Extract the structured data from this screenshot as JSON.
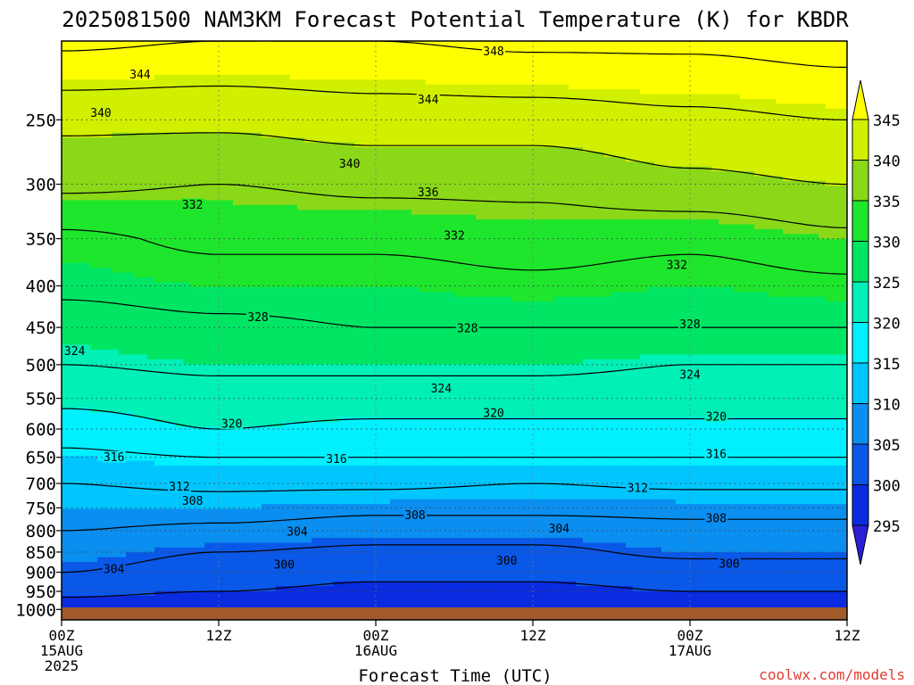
{
  "title": "2025081500 NAM3KM Forecast Potential Temperature (K) for KBDR",
  "xlabel": "Forecast Time (UTC)",
  "watermark": "coolwx.com/models",
  "chart_data": {
    "type": "contour",
    "title": "2025081500 NAM3KM Forecast Potential Temperature (K) for KBDR",
    "xlabel": "Forecast Time (UTC)",
    "ylabel": "",
    "y_scale": "log",
    "y_inverted": true,
    "x_range_hours": [
      0,
      60
    ],
    "y_range_hPa": [
      1030,
      200
    ],
    "x_ticks": [
      {
        "hour": 0,
        "lines": [
          "00Z",
          "15AUG",
          "2025"
        ]
      },
      {
        "hour": 12,
        "lines": [
          "12Z"
        ]
      },
      {
        "hour": 24,
        "lines": [
          "00Z",
          "16AUG"
        ]
      },
      {
        "hour": 36,
        "lines": [
          "12Z"
        ]
      },
      {
        "hour": 48,
        "lines": [
          "00Z",
          "17AUG"
        ]
      },
      {
        "hour": 60,
        "lines": [
          "12Z"
        ]
      }
    ],
    "y_ticks": [
      "250",
      "300",
      "350",
      "400",
      "450",
      "500",
      "550",
      "600",
      "650",
      "700",
      "750",
      "800",
      "850",
      "900",
      "950",
      "1000"
    ],
    "colorbar": {
      "labels": [
        "345",
        "340",
        "335",
        "330",
        "325",
        "320",
        "315",
        "310",
        "305",
        "300",
        "295"
      ],
      "levels": [
        295,
        300,
        305,
        310,
        315,
        320,
        325,
        330,
        335,
        340,
        345
      ],
      "colors": [
        "#2b1fd8",
        "#0a2ce0",
        "#0a58e8",
        "#0a8ef0",
        "#00c6ff",
        "#00f0ff",
        "#00f0b8",
        "#00e664",
        "#1ee62c",
        "#8ad818",
        "#d0f000",
        "#ffff00"
      ]
    },
    "contour_interval_K": 4,
    "profiles": [
      {
        "hour": 0,
        "levels_hPa": [
          1000,
          950,
          900,
          850,
          800,
          750,
          700,
          650,
          600,
          550,
          500,
          450,
          400,
          350,
          300,
          250,
          200
        ],
        "theta_K": [
          298,
          301,
          304,
          306,
          308,
          310,
          312,
          315,
          318,
          321,
          324,
          326,
          329,
          331,
          337,
          341,
          349
        ]
      },
      {
        "hour": 12,
        "levels_hPa": [
          1000,
          950,
          900,
          850,
          800,
          750,
          700,
          650,
          600,
          550,
          500,
          450,
          400,
          350,
          300,
          250,
          200
        ],
        "theta_K": [
          297,
          300,
          302,
          304,
          307,
          310,
          313,
          316,
          320,
          322,
          325,
          327,
          330,
          333,
          336,
          341,
          348
        ]
      },
      {
        "hour": 24,
        "levels_hPa": [
          1000,
          950,
          900,
          850,
          800,
          750,
          700,
          650,
          600,
          550,
          500,
          450,
          400,
          350,
          300,
          250,
          200
        ],
        "theta_K": [
          296,
          299,
          301,
          303,
          306,
          309,
          313,
          316,
          319,
          322,
          325,
          328,
          330,
          333,
          337,
          342,
          348
        ]
      },
      {
        "hour": 36,
        "levels_hPa": [
          1000,
          950,
          900,
          850,
          800,
          750,
          700,
          650,
          600,
          550,
          500,
          450,
          400,
          350,
          300,
          250,
          200
        ],
        "theta_K": [
          296,
          299,
          301,
          303,
          306,
          309,
          312,
          316,
          319,
          322,
          325,
          328,
          331,
          334,
          337,
          342,
          349
        ]
      },
      {
        "hour": 48,
        "levels_hPa": [
          1000,
          950,
          900,
          850,
          800,
          750,
          700,
          650,
          600,
          550,
          500,
          450,
          400,
          350,
          300,
          250,
          200
        ],
        "theta_K": [
          297,
          300,
          302,
          305,
          307,
          309,
          313,
          316,
          319,
          322,
          324,
          328,
          330,
          333,
          339,
          343,
          349
        ]
      },
      {
        "hour": 60,
        "levels_hPa": [
          1000,
          950,
          900,
          850,
          800,
          750,
          700,
          650,
          600,
          550,
          500,
          450,
          400,
          350,
          300,
          250,
          200
        ],
        "theta_K": [
          298,
          300,
          302,
          305,
          307,
          309,
          313,
          316,
          319,
          322,
          324,
          328,
          331,
          335,
          340,
          344,
          350
        ]
      }
    ],
    "contour_labels": [
      {
        "text": "348",
        "hour": 33,
        "hPa": 206
      },
      {
        "text": "344",
        "hour": 6,
        "hPa": 220
      },
      {
        "text": "344",
        "hour": 28,
        "hPa": 236
      },
      {
        "text": "340",
        "hour": 3,
        "hPa": 245
      },
      {
        "text": "340",
        "hour": 22,
        "hPa": 283
      },
      {
        "text": "336",
        "hour": 28,
        "hPa": 307
      },
      {
        "text": "332",
        "hour": 10,
        "hPa": 318
      },
      {
        "text": "332",
        "hour": 30,
        "hPa": 347
      },
      {
        "text": "332",
        "hour": 47,
        "hPa": 377
      },
      {
        "text": "328",
        "hour": 15,
        "hPa": 437
      },
      {
        "text": "328",
        "hour": 31,
        "hPa": 451
      },
      {
        "text": "328",
        "hour": 48,
        "hPa": 446
      },
      {
        "text": "324",
        "hour": 1,
        "hPa": 481
      },
      {
        "text": "324",
        "hour": 29,
        "hPa": 535
      },
      {
        "text": "324",
        "hour": 48,
        "hPa": 514
      },
      {
        "text": "320",
        "hour": 13,
        "hPa": 591
      },
      {
        "text": "320",
        "hour": 33,
        "hPa": 573
      },
      {
        "text": "320",
        "hour": 50,
        "hPa": 579
      },
      {
        "text": "316",
        "hour": 4,
        "hPa": 650
      },
      {
        "text": "316",
        "hour": 21,
        "hPa": 653
      },
      {
        "text": "316",
        "hour": 50,
        "hPa": 644
      },
      {
        "text": "312",
        "hour": 9,
        "hPa": 706
      },
      {
        "text": "312",
        "hour": 44,
        "hPa": 709
      },
      {
        "text": "308",
        "hour": 10,
        "hPa": 735
      },
      {
        "text": "308",
        "hour": 27,
        "hPa": 766
      },
      {
        "text": "308",
        "hour": 50,
        "hPa": 772
      },
      {
        "text": "304",
        "hour": 18,
        "hPa": 802
      },
      {
        "text": "304",
        "hour": 38,
        "hPa": 795
      },
      {
        "text": "304",
        "hour": 4,
        "hPa": 892
      },
      {
        "text": "300",
        "hour": 17,
        "hPa": 881
      },
      {
        "text": "300",
        "hour": 34,
        "hPa": 871
      },
      {
        "text": "300",
        "hour": 51,
        "hPa": 878
      }
    ]
  },
  "colors": {
    "ground": "#a05a2c",
    "watermark": "#e23b30",
    "axis": "#000000"
  }
}
